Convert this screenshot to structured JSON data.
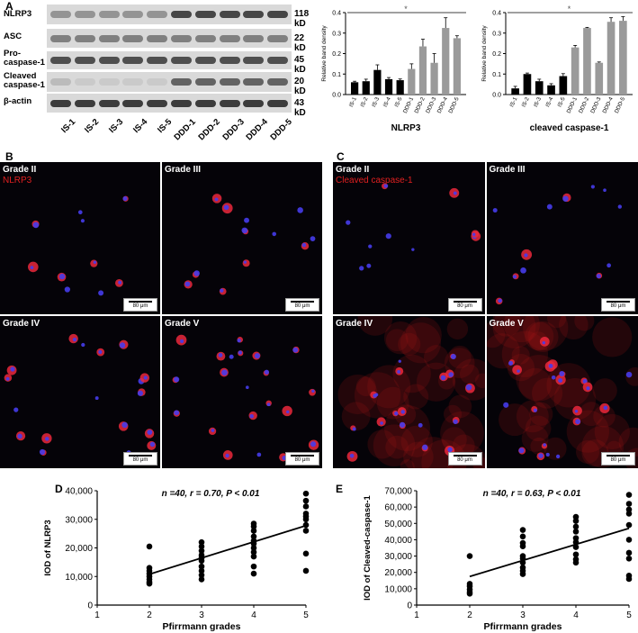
{
  "panel_a": {
    "letter": "A",
    "rows": [
      {
        "label": "NLRP3",
        "kd": "118 kD"
      },
      {
        "label": "ASC",
        "kd": "22 kD"
      },
      {
        "label": "Pro-\ncaspase-1",
        "kd": "45 kD"
      },
      {
        "label": "Cleaved\ncaspase-1",
        "kd": "20 kD"
      },
      {
        "label": "β-actin",
        "kd": "43 kD"
      }
    ],
    "lanes": [
      "IS-1",
      "IS-2",
      "IS-3",
      "IS-4",
      "IS-5",
      "DDD-1",
      "DDD-2",
      "DDD-3",
      "DDD-4",
      "DDD-5"
    ]
  },
  "panel_b": {
    "letter": "B",
    "stain": "NLRP3",
    "tiles": [
      {
        "grade": "Grade II",
        "scale": "80 μm"
      },
      {
        "grade": "Grade III",
        "scale": "80 μm"
      },
      {
        "grade": "Grade IV",
        "scale": "80 μm"
      },
      {
        "grade": "Grade V",
        "scale": "80 μm"
      }
    ]
  },
  "panel_c": {
    "letter": "C",
    "stain": "Cleaved caspase-1",
    "tiles": [
      {
        "grade": "Grade II",
        "scale": "80 μm"
      },
      {
        "grade": "Grade III",
        "scale": "80 μm"
      },
      {
        "grade": "Grade IV",
        "scale": "80 μm"
      },
      {
        "grade": "Grade V",
        "scale": "80 μm"
      }
    ]
  },
  "panel_d": {
    "letter": "D"
  },
  "panel_e": {
    "letter": "E"
  },
  "chart_data": [
    {
      "type": "bar",
      "id": "nlrp3-density",
      "title": "NLRP3",
      "ylabel": "Relative band density",
      "categories": [
        "IS-1",
        "IS-2",
        "IS-3",
        "IS-4",
        "IS-5",
        "DDD-1",
        "DDD-2",
        "DDD-3",
        "DDD-4",
        "DDD-5"
      ],
      "values": [
        0.06,
        0.065,
        0.12,
        0.075,
        0.07,
        0.125,
        0.235,
        0.155,
        0.325,
        0.275
      ],
      "errors": [
        0.005,
        0.01,
        0.025,
        0.008,
        0.006,
        0.025,
        0.035,
        0.045,
        0.05,
        0.012
      ],
      "colors": [
        "#000000",
        "#000000",
        "#000000",
        "#000000",
        "#000000",
        "#9a9a9a",
        "#9a9a9a",
        "#9a9a9a",
        "#9a9a9a",
        "#9a9a9a"
      ],
      "ylim": [
        0,
        0.4
      ],
      "yticks": [
        "0.0",
        "0.1",
        "0.2",
        "0.3",
        "0.4"
      ],
      "annotation": "*"
    },
    {
      "type": "bar",
      "id": "caspase-density",
      "title": "cleaved caspase-1",
      "ylabel": "Relative band density",
      "categories": [
        "IS-1",
        "IS-2",
        "IS-3",
        "IS-4",
        "IS-5",
        "DDD-1",
        "DDD-2",
        "DDD-3",
        "DDD-4",
        "DDD-5"
      ],
      "values": [
        0.03,
        0.1,
        0.065,
        0.045,
        0.09,
        0.23,
        0.325,
        0.155,
        0.355,
        0.36
      ],
      "errors": [
        0.01,
        0.005,
        0.01,
        0.008,
        0.012,
        0.01,
        0.003,
        0.004,
        0.02,
        0.02
      ],
      "colors": [
        "#000000",
        "#000000",
        "#000000",
        "#000000",
        "#000000",
        "#9a9a9a",
        "#9a9a9a",
        "#9a9a9a",
        "#9a9a9a",
        "#9a9a9a"
      ],
      "ylim": [
        0,
        0.4
      ],
      "yticks": [
        "0.0",
        "0.1",
        "0.2",
        "0.3",
        "0.4"
      ],
      "annotation": "*"
    },
    {
      "type": "scatter",
      "id": "nlrp3-scatter",
      "annotation": "n =40, r = 0.70, P < 0.01",
      "xlabel": "Pfirrmann grades",
      "ylabel": "IOD of NLRP3",
      "xlim": [
        1,
        5
      ],
      "ylim": [
        0,
        40000
      ],
      "xticks": [
        "1",
        "2",
        "3",
        "4",
        "5"
      ],
      "yticks": [
        "0",
        "10,000",
        "20,000",
        "30,000",
        "40,000"
      ],
      "points": [
        [
          2,
          20500
        ],
        [
          2,
          13000
        ],
        [
          2,
          12000
        ],
        [
          2,
          11000
        ],
        [
          2,
          10000
        ],
        [
          2,
          9000
        ],
        [
          2,
          8000
        ],
        [
          2,
          7500
        ],
        [
          3,
          22000
        ],
        [
          3,
          20500
        ],
        [
          3,
          19000
        ],
        [
          3,
          17500
        ],
        [
          3,
          16500
        ],
        [
          3,
          15500
        ],
        [
          3,
          13500
        ],
        [
          3,
          12000
        ],
        [
          3,
          10500
        ],
        [
          3,
          9000
        ],
        [
          4,
          28500
        ],
        [
          4,
          27500
        ],
        [
          4,
          26000
        ],
        [
          4,
          24000
        ],
        [
          4,
          22500
        ],
        [
          4,
          21500
        ],
        [
          4,
          20000
        ],
        [
          4,
          18500
        ],
        [
          4,
          17000
        ],
        [
          4,
          13500
        ],
        [
          4,
          11000
        ],
        [
          5,
          39000
        ],
        [
          5,
          36500
        ],
        [
          5,
          34500
        ],
        [
          5,
          32000
        ],
        [
          5,
          31000
        ],
        [
          5,
          30000
        ],
        [
          5,
          28000
        ],
        [
          5,
          26000
        ],
        [
          5,
          18000
        ],
        [
          5,
          12000
        ]
      ],
      "fit": [
        [
          2,
          10800
        ],
        [
          5,
          27800
        ]
      ]
    },
    {
      "type": "scatter",
      "id": "caspase-scatter",
      "annotation": "n =40, r = 0.63, P < 0.01",
      "xlabel": "Pfirrmann grades",
      "ylabel": "IOD of Cleaved-caspase-1",
      "xlim": [
        1,
        5
      ],
      "ylim": [
        0,
        70000
      ],
      "xticks": [
        "1",
        "2",
        "3",
        "4",
        "5"
      ],
      "yticks": [
        "0",
        "10,000",
        "20,000",
        "30,000",
        "40,000",
        "50,000",
        "60,000",
        "70,000"
      ],
      "points": [
        [
          2,
          30000
        ],
        [
          2,
          13000
        ],
        [
          2,
          11500
        ],
        [
          2,
          9500
        ],
        [
          2,
          8000
        ],
        [
          2,
          7000
        ],
        [
          3,
          46000
        ],
        [
          3,
          42000
        ],
        [
          3,
          38000
        ],
        [
          3,
          36000
        ],
        [
          3,
          30000
        ],
        [
          3,
          28500
        ],
        [
          3,
          26000
        ],
        [
          3,
          23000
        ],
        [
          3,
          21000
        ],
        [
          3,
          19000
        ],
        [
          4,
          54000
        ],
        [
          4,
          51500
        ],
        [
          4,
          48000
        ],
        [
          4,
          45000
        ],
        [
          4,
          41000
        ],
        [
          4,
          38500
        ],
        [
          4,
          35500
        ],
        [
          4,
          31000
        ],
        [
          4,
          28000
        ],
        [
          4,
          26000
        ],
        [
          5,
          67500
        ],
        [
          5,
          62000
        ],
        [
          5,
          58500
        ],
        [
          5,
          56000
        ],
        [
          5,
          49000
        ],
        [
          5,
          40000
        ],
        [
          5,
          32000
        ],
        [
          5,
          28500
        ],
        [
          5,
          18000
        ],
        [
          5,
          16000
        ]
      ],
      "fit": [
        [
          2,
          17500
        ],
        [
          5,
          47000
        ]
      ]
    }
  ]
}
